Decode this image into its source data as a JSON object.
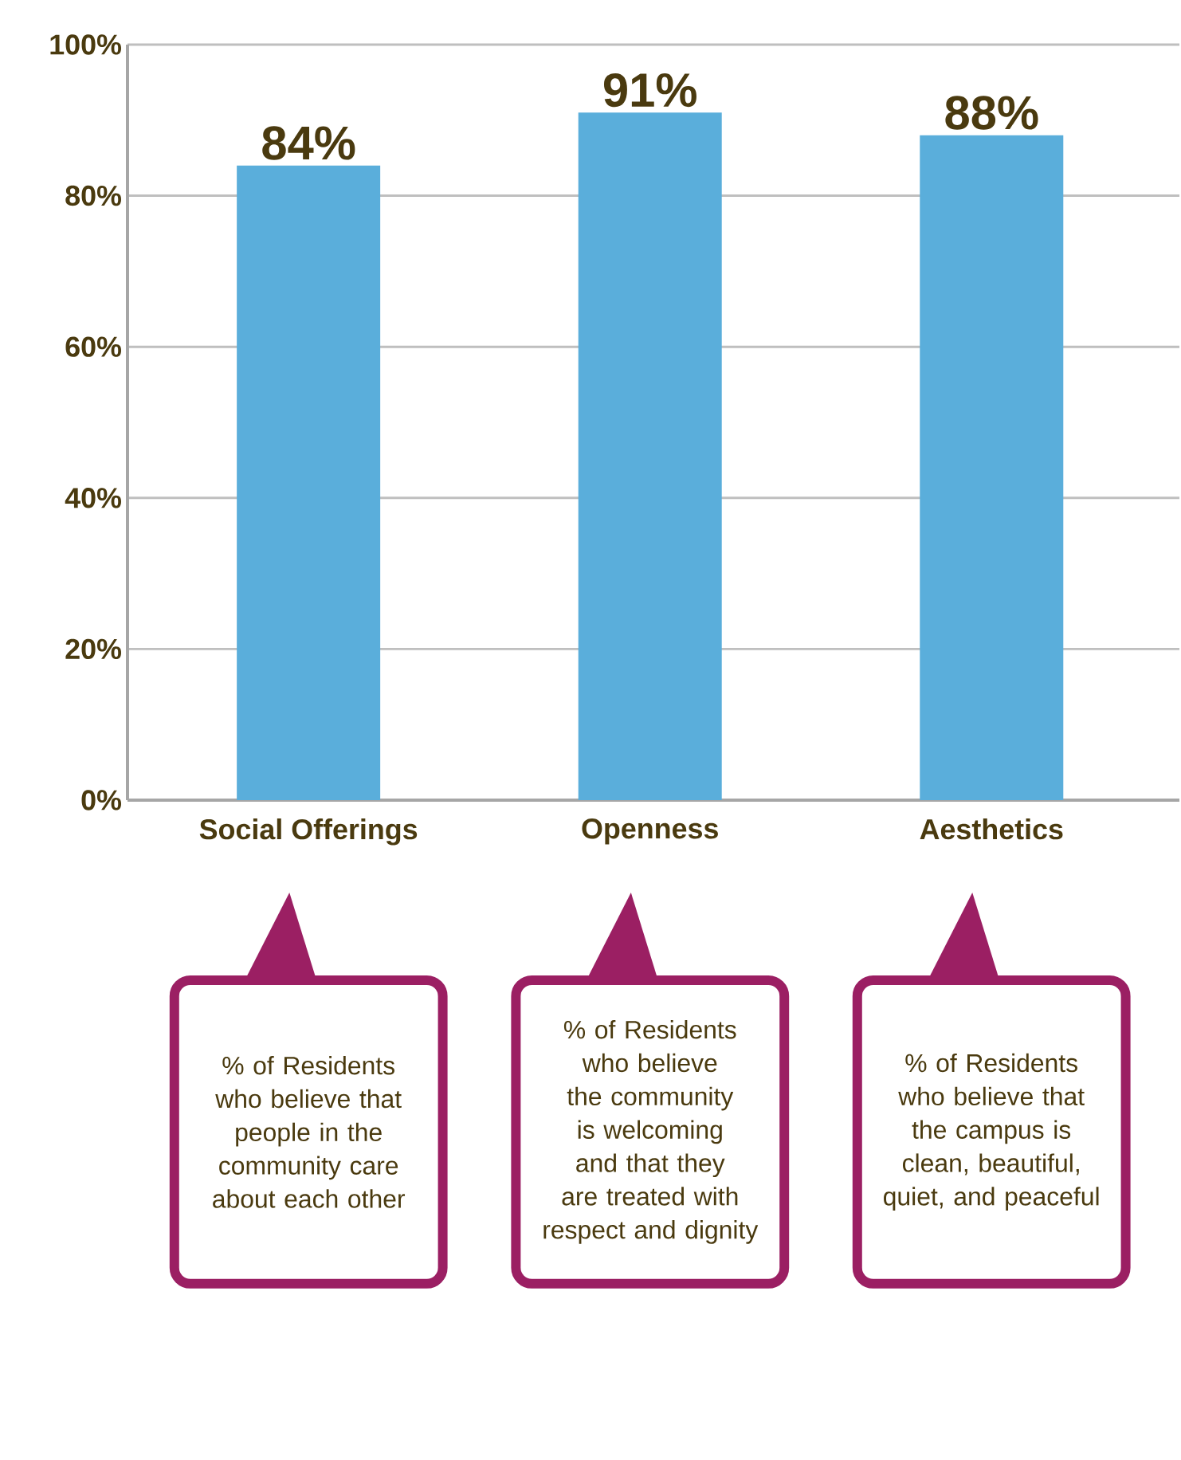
{
  "chart_data": {
    "type": "bar",
    "categories": [
      "Social Offerings",
      "Openness",
      "Aesthetics"
    ],
    "values": [
      84,
      91,
      88
    ],
    "value_labels": [
      "84%",
      "91%",
      "88%"
    ],
    "color": "#5aaedb",
    "ylim": [
      0,
      100
    ],
    "yticks": [
      {
        "value": 0,
        "label": "0%"
      },
      {
        "value": 20,
        "label": "20%"
      },
      {
        "value": 40,
        "label": "40%"
      },
      {
        "value": 60,
        "label": "60%"
      },
      {
        "value": 80,
        "label": "80%"
      },
      {
        "value": 100,
        "label": "100%"
      }
    ],
    "grid": "y",
    "annotations": [
      "% of Residents who believe that people in the community care about each other",
      "% of Residents who believe the community is welcoming and that they are treated with respect and dignity",
      "% of Residents who believe that the campus is clean, beautiful, quiet, and peaceful"
    ]
  }
}
